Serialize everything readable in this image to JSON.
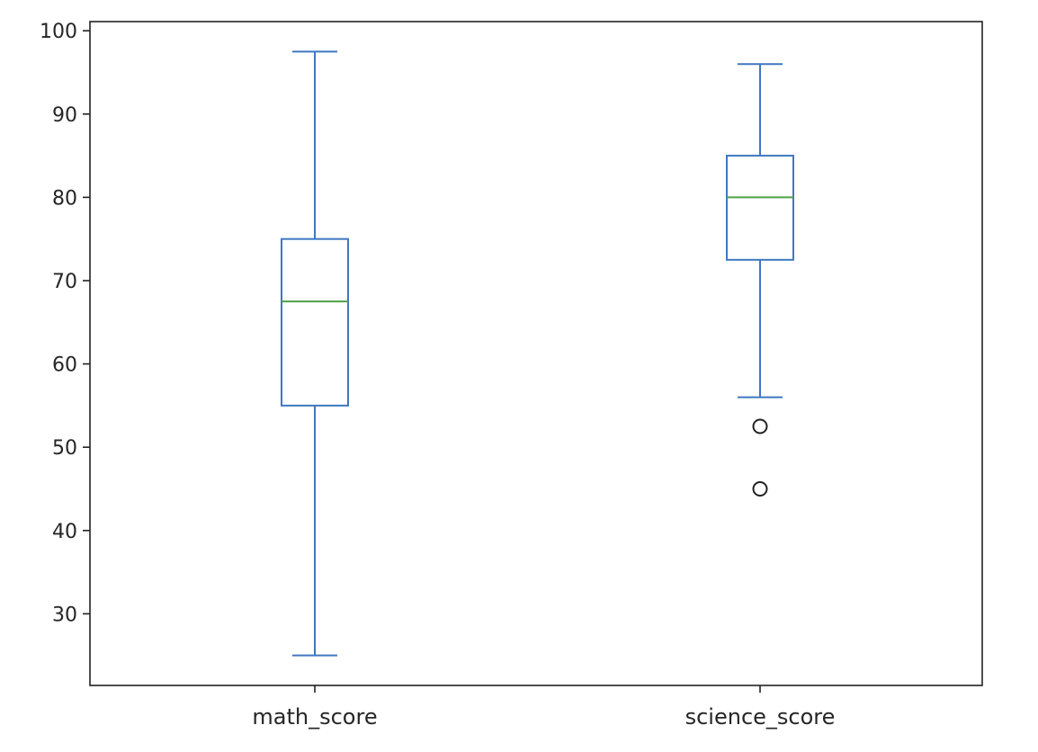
{
  "chart_data": {
    "type": "box",
    "categories": [
      "math_score",
      "science_score"
    ],
    "boxes": [
      {
        "name": "math_score",
        "whisker_low": 25,
        "q1": 55,
        "median": 67.5,
        "q3": 75,
        "whisker_high": 97.5,
        "outliers": []
      },
      {
        "name": "science_score",
        "whisker_low": 56,
        "q1": 72.5,
        "median": 80,
        "q3": 85,
        "whisker_high": 96,
        "outliers": [
          52.5,
          45
        ]
      }
    ],
    "y_ticks": [
      30,
      40,
      50,
      60,
      70,
      80,
      90,
      100
    ],
    "ylim": [
      21.4,
      101.1
    ],
    "title": "",
    "xlabel": "",
    "ylabel": "",
    "grid": false,
    "colors": {
      "box": "#3f78c1",
      "median": "#4ea04a",
      "outlier": "#222222",
      "axes": "#222222"
    }
  }
}
